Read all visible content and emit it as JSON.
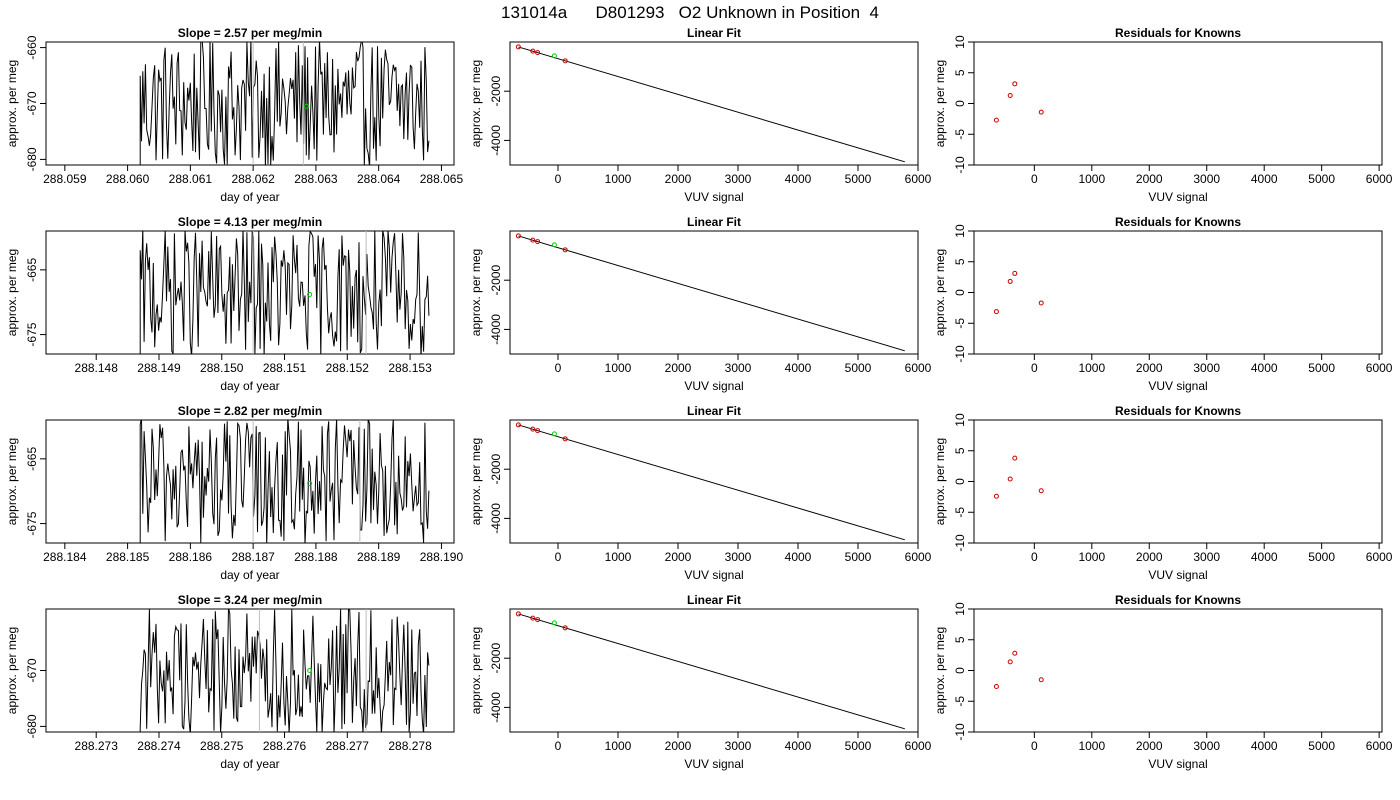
{
  "title": "131014a      D801293   O2 Unknown in Position  4",
  "colors": {
    "line": "#000000",
    "known": "#cd0000",
    "unknown": "#00cd00",
    "vline": "#bebebe"
  },
  "chart_data": [
    {
      "type": "line",
      "title": "Slope =  2.57  per meg/min",
      "xlabel": "day of year",
      "ylabel": "approx. per meg",
      "xlim": [
        288.0587,
        288.0652
      ],
      "ylim": [
        -681,
        -659
      ],
      "xticks": [
        "288.059",
        "288.060",
        "288.061",
        "288.062",
        "288.063",
        "288.064",
        "288.065"
      ],
      "yticks": [
        "-660",
        "-670",
        "-680"
      ],
      "grid": false,
      "series": [
        {
          "trace": "x0:288.0602,x1:288.0648,n:220",
          "vlines": [
            288.062,
            288.0628
          ],
          "unknown_point": [
            288.06285,
            -670.5
          ]
        }
      ]
    },
    {
      "type": "scatter",
      "title": "Linear Fit",
      "xlabel": "VUV signal",
      "ylabel": "approx. per meg",
      "xlim": [
        -800,
        6000
      ],
      "ylim": [
        -5000,
        0
      ],
      "xticks": [
        "0",
        "1000",
        "2000",
        "3000",
        "4000",
        "5000",
        "6000"
      ],
      "yticks": [
        "-2000",
        "-4000"
      ],
      "grid": false,
      "fit_line": {
        "x": [
          -660,
          5780
        ],
        "y": [
          -200,
          -4870
        ]
      },
      "knowns": {
        "x": [
          -660,
          -420,
          -340,
          120
        ],
        "y": [
          -200,
          -372,
          -430,
          -765
        ]
      },
      "unknown": {
        "x": [
          -60
        ],
        "y": [
          -565
        ]
      }
    },
    {
      "type": "scatter",
      "title": "Residuals for Knowns",
      "xlabel": "VUV signal",
      "ylabel": "approx. per meg",
      "xlim": [
        -1050,
        6050
      ],
      "ylim": [
        -10,
        10
      ],
      "xticks": [
        "0",
        "1000",
        "2000",
        "3000",
        "4000",
        "5000",
        "6000"
      ],
      "yticks": [
        "-10",
        "-5",
        "0",
        "5",
        "10"
      ],
      "grid": false,
      "residuals": {
        "x": [
          -660,
          -420,
          -340,
          120
        ],
        "y": [
          -2.7,
          1.3,
          3.2,
          -1.4
        ]
      }
    },
    {
      "type": "line",
      "title": "Slope =  4.13  per meg/min",
      "xlabel": "day of year",
      "ylabel": "approx. per meg",
      "xlim": [
        288.1472,
        288.1537
      ],
      "ylim": [
        -678,
        -659
      ],
      "xticks": [
        "288.148",
        "288.149",
        "288.150",
        "288.151",
        "288.152",
        "288.153"
      ],
      "yticks": [
        "-665",
        "-675"
      ],
      "grid": false,
      "series": [
        {
          "trace": "x0:288.1487,x1:288.1533,n:220",
          "vlines": [
            288.1505,
            288.1523
          ],
          "unknown_point": [
            288.1514,
            -668.8
          ]
        }
      ]
    },
    {
      "type": "scatter",
      "title": "Linear Fit",
      "xlabel": "VUV signal",
      "ylabel": "approx. per meg",
      "xlim": [
        -800,
        6000
      ],
      "ylim": [
        -5000,
        0
      ],
      "xticks": [
        "0",
        "1000",
        "2000",
        "3000",
        "4000",
        "5000",
        "6000"
      ],
      "yticks": [
        "-2000",
        "-4000"
      ],
      "grid": false,
      "fit_line": {
        "x": [
          -660,
          5780
        ],
        "y": [
          -200,
          -4870
        ]
      },
      "knowns": {
        "x": [
          -660,
          -420,
          -340,
          120
        ],
        "y": [
          -200,
          -372,
          -430,
          -765
        ]
      },
      "unknown": {
        "x": [
          -60
        ],
        "y": [
          -565
        ]
      }
    },
    {
      "type": "scatter",
      "title": "Residuals for Knowns",
      "xlabel": "VUV signal",
      "ylabel": "approx. per meg",
      "xlim": [
        -1050,
        6050
      ],
      "ylim": [
        -10,
        10
      ],
      "xticks": [
        "0",
        "1000",
        "2000",
        "3000",
        "4000",
        "5000",
        "6000"
      ],
      "yticks": [
        "-10",
        "-5",
        "0",
        "5",
        "10"
      ],
      "grid": false,
      "residuals": {
        "x": [
          -660,
          -420,
          -340,
          120
        ],
        "y": [
          -3.1,
          1.8,
          3.1,
          -1.7
        ]
      }
    },
    {
      "type": "line",
      "title": "Slope =  2.82  per meg/min",
      "xlabel": "day of year",
      "ylabel": "approx. per meg",
      "xlim": [
        288.1837,
        288.1902
      ],
      "ylim": [
        -678,
        -659
      ],
      "xticks": [
        "288.184",
        "288.185",
        "288.186",
        "288.187",
        "288.188",
        "288.189",
        "288.190"
      ],
      "yticks": [
        "-665",
        "-675"
      ],
      "grid": false,
      "series": [
        {
          "trace": "x0:288.1852,x1:288.1898,n:220",
          "vlines": [
            288.187,
            288.1887
          ],
          "unknown_point": [
            288.1879,
            -668.8
          ]
        }
      ]
    },
    {
      "type": "scatter",
      "title": "Linear Fit",
      "xlabel": "VUV signal",
      "ylabel": "approx. per meg",
      "xlim": [
        -800,
        6000
      ],
      "ylim": [
        -5000,
        0
      ],
      "xticks": [
        "0",
        "1000",
        "2000",
        "3000",
        "4000",
        "5000",
        "6000"
      ],
      "yticks": [
        "-2000",
        "-4000"
      ],
      "grid": false,
      "fit_line": {
        "x": [
          -660,
          5780
        ],
        "y": [
          -200,
          -4870
        ]
      },
      "knowns": {
        "x": [
          -660,
          -420,
          -340,
          120
        ],
        "y": [
          -200,
          -372,
          -430,
          -765
        ]
      },
      "unknown": {
        "x": [
          -60
        ],
        "y": [
          -565
        ]
      }
    },
    {
      "type": "scatter",
      "title": "Residuals for Knowns",
      "xlabel": "VUV signal",
      "ylabel": "approx. per meg",
      "xlim": [
        -1050,
        6050
      ],
      "ylim": [
        -10,
        10
      ],
      "xticks": [
        "0",
        "1000",
        "2000",
        "3000",
        "4000",
        "5000",
        "6000"
      ],
      "yticks": [
        "-10",
        "-5",
        "0",
        "5",
        "10"
      ],
      "residuals": {
        "x": [
          -660,
          -420,
          -340,
          120
        ],
        "y": [
          -2.4,
          0.4,
          3.8,
          -1.5
        ]
      },
      "grid": false
    },
    {
      "type": "line",
      "title": "Slope =  3.24  per meg/min",
      "xlabel": "day of year",
      "ylabel": "approx. per meg",
      "xlim": [
        288.2722,
        288.2787
      ],
      "ylim": [
        -681,
        -659
      ],
      "xticks": [
        "288.273",
        "288.274",
        "288.275",
        "288.276",
        "288.277",
        "288.278"
      ],
      "yticks": [
        "-670",
        "-680"
      ],
      "grid": false,
      "series": [
        {
          "trace": "x0:288.2737,x1:288.2783,n:220",
          "vlines": [
            288.2756,
            288.2773
          ],
          "unknown_point": [
            288.2764,
            -670.0
          ]
        }
      ]
    },
    {
      "type": "scatter",
      "title": "Linear Fit",
      "xlabel": "VUV signal",
      "ylabel": "approx. per meg",
      "xlim": [
        -800,
        6000
      ],
      "ylim": [
        -5000,
        0
      ],
      "xticks": [
        "0",
        "1000",
        "2000",
        "3000",
        "4000",
        "5000",
        "6000"
      ],
      "yticks": [
        "-2000",
        "-4000"
      ],
      "grid": false,
      "fit_line": {
        "x": [
          -660,
          5780
        ],
        "y": [
          -200,
          -4870
        ]
      },
      "knowns": {
        "x": [
          -660,
          -420,
          -340,
          120
        ],
        "y": [
          -200,
          -372,
          -430,
          -765
        ]
      },
      "unknown": {
        "x": [
          -60
        ],
        "y": [
          -565
        ]
      }
    },
    {
      "type": "scatter",
      "title": "Residuals for Knowns",
      "xlabel": "VUV signal",
      "ylabel": "approx. per meg",
      "xlim": [
        -1050,
        6050
      ],
      "ylim": [
        -10,
        10
      ],
      "xticks": [
        "0",
        "1000",
        "2000",
        "3000",
        "4000",
        "5000",
        "6000"
      ],
      "yticks": [
        "-10",
        "-5",
        "0",
        "5",
        "10"
      ],
      "grid": false,
      "residuals": {
        "x": [
          -660,
          -420,
          -340,
          120
        ],
        "y": [
          -2.6,
          1.4,
          2.8,
          -1.5
        ]
      }
    }
  ]
}
